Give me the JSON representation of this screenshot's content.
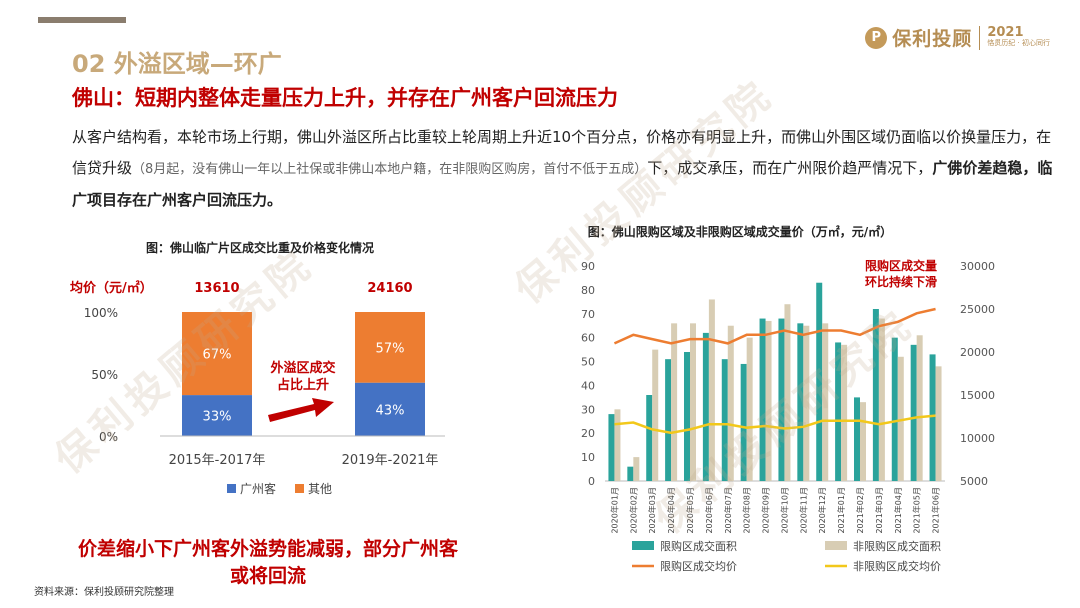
{
  "header": {
    "section_title": "02  外溢区域—环广",
    "headline": "佛山：短期内整体走量压力上升，并存在广州客户回流压力",
    "logo_text": "保利投顾",
    "logo_year": "2021",
    "logo_slogan": "恪贯历纪 · 初心同行"
  },
  "body": {
    "part1": "从客户结构看，本轮市场上行期，佛山外溢区所占比重较上轮周期上升近10个百分点，价格亦有明显上升，而佛山外围区域仍面临以价换量压力，在信贷升级",
    "note": "（8月起，没有佛山一年以上社保或非佛山本地户籍，在非限购区购房，首付不低于五成）",
    "part2": "下，成交承压，而在广州限价趋严情况下，",
    "strong": "广佛价差趋稳，临广项目存在广州客户回流压力。"
  },
  "watermark": "保利投顾研究院",
  "conclusion": "价差缩小下广州客外溢势能减弱，部分广州客或将回流",
  "source": "资料来源：保利投顾研究院整理",
  "colors": {
    "guangzhou": "#4472c4",
    "other": "#ed7d31",
    "teal": "#2aa39b",
    "beige": "#d8cdb4",
    "orange_line": "#ed7d31",
    "yellow_line": "#f2c81b",
    "red": "#c00000"
  },
  "chart_data": [
    {
      "type": "bar",
      "stacked": true,
      "title": "图：佛山临广片区成交比重及价格变化情况",
      "price_label": "均价（元/㎡）",
      "prices": [
        "13610",
        "24160"
      ],
      "categories": [
        "2015年-2017年",
        "2019年-2021年"
      ],
      "series": [
        {
          "name": "广州客",
          "values": [
            33,
            43
          ],
          "labels": [
            "33%",
            "43%"
          ]
        },
        {
          "name": "其他",
          "values": [
            67,
            57
          ],
          "labels": [
            "67%",
            "57%"
          ]
        }
      ],
      "ytick_labels": [
        "100%",
        "50%",
        "0%"
      ],
      "annotation": "外溢区成交占比上升",
      "ylim": [
        0,
        100
      ]
    },
    {
      "type": "bar",
      "title": "图：佛山限购区域及非限购区域成交量价（万㎡，元/㎡）",
      "categories": [
        "2020年01月",
        "2020年02月",
        "2020年03月",
        "2020年04月",
        "2020年05月",
        "2020年06月",
        "2020年07月",
        "2020年08月",
        "2020年09月",
        "2020年10月",
        "2020年11月",
        "2020年12月",
        "2021年01月",
        "2021年02月",
        "2021年03月",
        "2021年04月",
        "2021年05月",
        "2021年06月"
      ],
      "series": [
        {
          "name": "限购区成交面积",
          "axis": "left",
          "kind": "bar",
          "values": [
            28,
            6,
            36,
            51,
            54,
            62,
            51,
            49,
            68,
            68,
            66,
            83,
            58,
            35,
            72,
            60,
            57,
            53
          ]
        },
        {
          "name": "非限购区成交面积",
          "axis": "left",
          "kind": "bar",
          "values": [
            30,
            10,
            55,
            66,
            66,
            76,
            65,
            60,
            67,
            74,
            65,
            66,
            57,
            33,
            68,
            52,
            61,
            48
          ]
        },
        {
          "name": "限购区成交均价",
          "axis": "right",
          "kind": "line",
          "values": [
            21000,
            22000,
            21500,
            21000,
            21500,
            21500,
            21000,
            22000,
            22000,
            22500,
            22000,
            22500,
            22500,
            22000,
            23000,
            23500,
            24500,
            25000
          ]
        },
        {
          "name": "非限购区成交均价",
          "axis": "right",
          "kind": "line",
          "values": [
            11600,
            11800,
            11000,
            10600,
            11000,
            11600,
            11600,
            11200,
            11400,
            11100,
            11300,
            12000,
            12000,
            12000,
            11600,
            12000,
            12400,
            12600
          ]
        }
      ],
      "yleft_ticks": [
        "0",
        "10",
        "20",
        "30",
        "40",
        "50",
        "60",
        "70",
        "80",
        "90"
      ],
      "yright_ticks": [
        "5000",
        "10000",
        "15000",
        "20000",
        "25000",
        "30000"
      ],
      "ylim_left": [
        0,
        90
      ],
      "ylim_right": [
        5000,
        30000
      ],
      "annotation": [
        "限购区成交量",
        "环比持续下滑"
      ]
    }
  ]
}
